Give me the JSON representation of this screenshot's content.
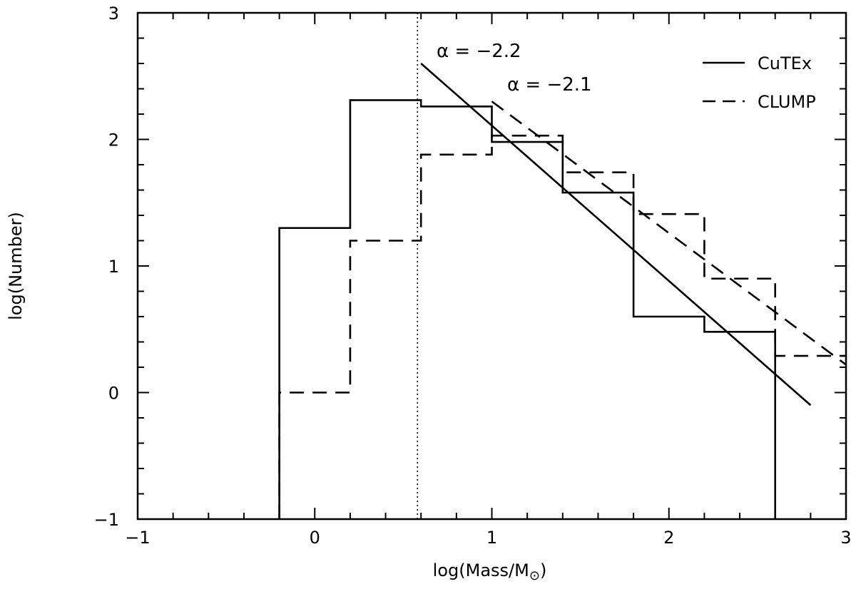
{
  "chart_data": {
    "type": "line",
    "title": "",
    "xlabel": "log(Mass/M",
    "xlabel_symbol": "⊙",
    "xlabel_close": ")",
    "ylabel": "log(Number)",
    "xlim": [
      -1,
      3
    ],
    "ylim": [
      -1,
      3
    ],
    "x_ticks": [
      -1,
      0,
      1,
      2,
      3
    ],
    "x_tick_labels": [
      "−1",
      "0",
      "1",
      "2",
      "3"
    ],
    "y_ticks": [
      -1,
      0,
      1,
      2,
      3
    ],
    "y_tick_labels": [
      "−1",
      "0",
      "1",
      "2",
      "3"
    ],
    "x_minor_step": 0.2,
    "y_minor_step": 0.2,
    "grid": false,
    "legend_position": "top-right",
    "completeness_limit_x": 0.58,
    "series": [
      {
        "name": "CuTEx",
        "style": "solid",
        "bin_edges": [
          -0.2,
          0.2,
          0.6,
          1.0,
          1.4,
          1.8,
          2.2,
          2.6
        ],
        "counts": [
          1.3,
          2.31,
          2.26,
          1.98,
          1.58,
          0.6,
          0.48
        ]
      },
      {
        "name": "CLUMP",
        "style": "dashed",
        "bin_edges": [
          -0.2,
          0.2,
          0.6,
          1.0,
          1.4,
          1.8,
          2.2,
          2.6,
          3.0
        ],
        "counts": [
          0.0,
          1.2,
          1.88,
          2.03,
          1.74,
          1.41,
          0.9,
          0.29
        ]
      }
    ],
    "fits": [
      {
        "series": "CuTEx",
        "style": "solid",
        "x": [
          0.6,
          2.8
        ],
        "y": [
          2.6,
          -0.1
        ],
        "label": "α = −2.2"
      },
      {
        "series": "CLUMP",
        "style": "dashed",
        "x": [
          1.0,
          3.0
        ],
        "y": [
          2.3,
          0.22
        ],
        "label": "α = −2.1"
      }
    ],
    "line_color": "#000000"
  }
}
